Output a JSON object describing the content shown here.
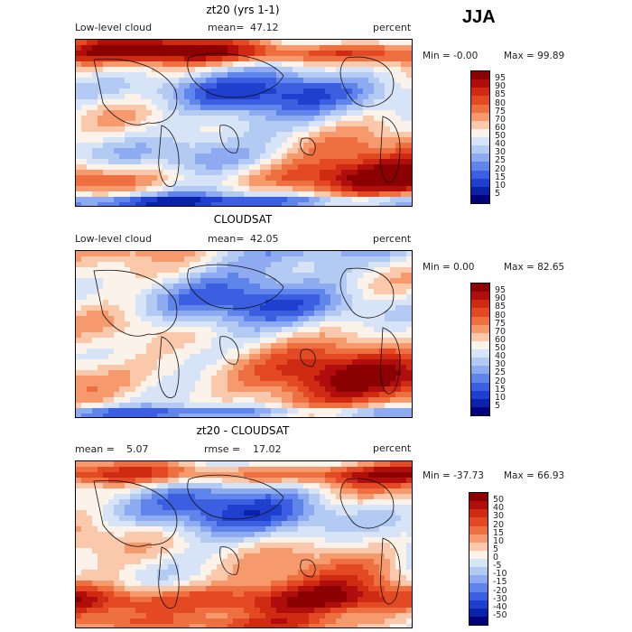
{
  "season": "JJA",
  "chart_data": [
    {
      "type": "heatmap",
      "title": "zt20 (yrs 1-1)",
      "field": "Low-level cloud",
      "stat1_label": "mean=",
      "stat1_value": "47.12",
      "stat2_label": "",
      "stat2_value": "",
      "units": "percent",
      "min_text": "Min =  -0.00",
      "max_text": "Max =  99.89",
      "levels": [
        "95",
        "90",
        "85",
        "80",
        "75",
        "70",
        "60",
        "50",
        "40",
        "30",
        "25",
        "20",
        "15",
        "10",
        "5"
      ],
      "colors": [
        "#8b0000",
        "#b00d0d",
        "#cf2a12",
        "#e34a24",
        "#ee7040",
        "#f6996c",
        "#fac8ab",
        "#fbf3ea",
        "#d7e3f7",
        "#b3caf2",
        "#8eaaf0",
        "#5f85ea",
        "#3b5fe0",
        "#1f3fce",
        "#0a22a8",
        "#00007a"
      ]
    },
    {
      "type": "heatmap",
      "title": "CLOUDSAT",
      "field": "Low-level cloud",
      "stat1_label": "mean=",
      "stat1_value": "42.05",
      "stat2_label": "",
      "stat2_value": "",
      "units": "percent",
      "min_text": "Min =   0.00",
      "max_text": "Max =  82.65",
      "levels": [
        "95",
        "90",
        "85",
        "80",
        "75",
        "70",
        "60",
        "50",
        "40",
        "30",
        "25",
        "20",
        "15",
        "10",
        "5"
      ],
      "colors": [
        "#8b0000",
        "#b00d0d",
        "#cf2a12",
        "#e34a24",
        "#ee7040",
        "#f6996c",
        "#fac8ab",
        "#fbf3ea",
        "#d7e3f7",
        "#b3caf2",
        "#8eaaf0",
        "#5f85ea",
        "#3b5fe0",
        "#1f3fce",
        "#0a22a8",
        "#00007a"
      ]
    },
    {
      "type": "heatmap",
      "title": "zt20 - CLOUDSAT",
      "field": "",
      "stat1_label": "mean =",
      "stat1_value": "5.07",
      "stat2_label": "rmse =",
      "stat2_value": "17.02",
      "units": "percent",
      "min_text": "Min = -37.73",
      "max_text": "Max =  66.93",
      "levels": [
        "50",
        "40",
        "30",
        "20",
        "15",
        "10",
        "5",
        "0",
        "-5",
        "-10",
        "-15",
        "-20",
        "-30",
        "-40",
        "-50"
      ],
      "colors": [
        "#8b0000",
        "#b00d0d",
        "#cf2a12",
        "#e34a24",
        "#ee7040",
        "#f6996c",
        "#fac8ab",
        "#fbf3ea",
        "#d7e3f7",
        "#b3caf2",
        "#8eaaf0",
        "#5f85ea",
        "#3b5fe0",
        "#1f3fce",
        "#0a22a8",
        "#00007a"
      ]
    }
  ]
}
